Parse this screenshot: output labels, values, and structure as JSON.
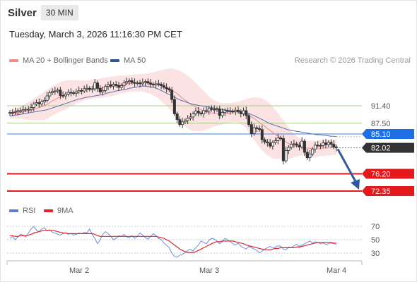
{
  "header": {
    "instrument": "Silver",
    "timeframe": "30 MIN",
    "datetime": "Tuesday, March 3, 2026 11:16:30 PM CET"
  },
  "legend": {
    "items": [
      {
        "label": "MA 20 + Bollinger Bands",
        "color": "#f08c8c"
      },
      {
        "label": "MA 50",
        "color": "#2f5597"
      }
    ],
    "credit": "Research © 2026 Trading Central"
  },
  "rsi_legend": {
    "items": [
      {
        "label": "RSI",
        "color": "#5b7fd6"
      },
      {
        "label": "9MA",
        "color": "#e0242b"
      }
    ]
  },
  "chart_data": [
    {
      "type": "candlestick",
      "x_labels": [
        "Mar 2",
        "Mar 3",
        "Mar 4"
      ],
      "ylim": [
        69.0,
        100.5
      ],
      "levels": [
        {
          "label": "91.40",
          "value": 91.4,
          "kind": "resistance"
        },
        {
          "label": "87.50",
          "value": 87.5,
          "kind": "resistance"
        },
        {
          "label": "85.10",
          "value": 85.1,
          "kind": "pivot"
        },
        {
          "label": "76.20",
          "value": 76.2,
          "kind": "support"
        },
        {
          "label": "72.35",
          "value": 72.35,
          "kind": "support"
        }
      ],
      "last_price": {
        "label": "82.02",
        "value": 82.02
      },
      "forecast": {
        "from": 82.02,
        "to": 72.35
      },
      "close": [
        89.9,
        89.9,
        90.1,
        90.3,
        90.3,
        90.5,
        90.6,
        90.6,
        91.0,
        91.8,
        92.1,
        91.8,
        92.3,
        92.6,
        93.6,
        94.3,
        94.6,
        94.7,
        94.9,
        93.7,
        93.6,
        94.0,
        94.4,
        94.3,
        94.2,
        94.5,
        94.8,
        94.7,
        95.2,
        95.3,
        95.1,
        95.2,
        96.5,
        95.3,
        94.5,
        94.8,
        95.7,
        96.1,
        95.8,
        96.2,
        95.9,
        95.5,
        95.9,
        96.5,
        96.8,
        97.0,
        96.6,
        96.4,
        96.5,
        96.3,
        96.6,
        96.8,
        96.5,
        96.2,
        96.1,
        96.3,
        96.2,
        95.9,
        95.5,
        95.2,
        94.9,
        92.8,
        89.6,
        88.3,
        87.2,
        87.8,
        88.1,
        88.6,
        88.9,
        89.6,
        90.2,
        89.8,
        89.6,
        90.3,
        90.2,
        90.8,
        90.6,
        90.5,
        90.7,
        89.2,
        89.9,
        90.3,
        90.2,
        90.2,
        90.1,
        90.4,
        90.1,
        89.6,
        90.3,
        89.2,
        87.2,
        85.2,
        86.5,
        86.3,
        86.1,
        83.8,
        83.3,
        83.1,
        82.4,
        83.2,
        83.6,
        84.2,
        84.1,
        79.1,
        81.4,
        82.1,
        82.8,
        82.9,
        82.6,
        82.2,
        83.5,
        81.0,
        79.8,
        80.6,
        81.7,
        82.6,
        82.5,
        82.5,
        83.1,
        82.7,
        83.2,
        82.8,
        82.2,
        82.02
      ],
      "ma20": [
        89.6,
        89.6,
        89.7,
        89.8,
        89.9,
        90.0,
        90.1,
        90.2,
        90.4,
        90.6,
        90.8,
        91.0,
        91.2,
        91.4,
        91.7,
        92.1,
        92.5,
        92.8,
        93.1,
        93.4,
        93.6,
        93.8,
        94.0,
        94.2,
        94.3,
        94.5,
        94.6,
        94.7,
        94.8,
        94.9,
        95.0,
        95.1,
        95.2,
        95.3,
        95.3,
        95.4,
        95.5,
        95.6,
        95.7,
        95.8,
        95.9,
        96.0,
        96.1,
        96.2,
        96.3,
        96.4,
        96.4,
        96.5,
        96.5,
        96.5,
        96.5,
        96.5,
        96.4,
        96.4,
        96.3,
        96.2,
        96.1,
        95.9,
        95.7,
        95.5,
        95.2,
        94.9,
        94.5,
        94.1,
        93.6,
        93.1,
        92.6,
        92.2,
        91.8,
        91.4,
        91.1,
        90.8,
        90.5,
        90.3,
        90.1,
        89.9,
        89.8,
        89.7,
        89.6,
        89.6,
        89.6,
        89.7,
        89.7,
        89.8,
        89.9,
        90.0,
        90.0,
        89.9,
        89.8,
        89.6,
        89.3,
        88.9,
        88.5,
        88.1,
        87.7,
        87.2,
        86.8,
        86.3,
        85.9,
        85.4,
        85.0,
        84.6,
        84.2,
        83.7,
        83.3,
        83.0,
        82.7,
        82.5,
        82.3,
        82.2,
        82.1,
        82.0,
        81.9,
        81.9,
        81.8,
        81.8,
        81.8,
        81.9,
        81.9,
        82.0,
        82.0,
        82.1,
        82.1,
        82.1
      ],
      "bb_upper": [
        90.6,
        90.7,
        90.9,
        91.1,
        91.3,
        91.6,
        91.9,
        92.2,
        92.6,
        93.0,
        93.4,
        93.8,
        94.2,
        94.6,
        95.0,
        95.4,
        95.8,
        96.1,
        96.4,
        96.7,
        96.9,
        97.0,
        97.1,
        97.1,
        97.1,
        97.1,
        97.1,
        97.0,
        97.0,
        97.0,
        97.1,
        97.2,
        97.3,
        97.4,
        97.5,
        97.6,
        97.7,
        97.8,
        97.9,
        98.0,
        98.0,
        98.1,
        98.1,
        98.2,
        98.2,
        98.3,
        98.3,
        98.4,
        98.4,
        98.5,
        98.5,
        98.6,
        98.6,
        98.7,
        98.9,
        99.0,
        99.2,
        99.4,
        99.5,
        99.6,
        99.7,
        99.7,
        99.6,
        99.4,
        99.2,
        98.9,
        98.5,
        98.1,
        97.6,
        97.1,
        96.5,
        95.9,
        95.3,
        94.7,
        94.1,
        93.5,
        93.0,
        92.6,
        92.3,
        92.1,
        92.0,
        92.0,
        92.0,
        92.0,
        92.1,
        92.2,
        92.3,
        92.5,
        92.7,
        92.9,
        93.1,
        93.2,
        93.3,
        93.3,
        93.2,
        93.0,
        92.7,
        92.3,
        91.8,
        91.2,
        90.5,
        89.7,
        88.9,
        88.1,
        87.3,
        86.5,
        85.8,
        85.1,
        84.6,
        84.2,
        83.9,
        83.7,
        83.6,
        83.6,
        83.6,
        83.6,
        83.7,
        83.7,
        83.8,
        83.8,
        83.8,
        83.8,
        83.8,
        83.8
      ],
      "bb_lower": [
        88.6,
        88.5,
        88.5,
        88.5,
        88.5,
        88.4,
        88.3,
        88.2,
        88.2,
        88.2,
        88.2,
        88.2,
        88.2,
        88.2,
        88.4,
        88.8,
        89.2,
        89.5,
        89.8,
        90.1,
        90.3,
        90.6,
        90.9,
        91.3,
        91.5,
        91.9,
        92.1,
        92.4,
        92.6,
        92.8,
        92.9,
        93.0,
        93.1,
        93.2,
        93.1,
        93.2,
        93.3,
        93.4,
        93.5,
        93.6,
        93.8,
        93.9,
        94.1,
        94.2,
        94.4,
        94.5,
        94.5,
        94.6,
        94.6,
        94.5,
        94.5,
        94.4,
        94.2,
        94.1,
        93.7,
        93.4,
        93.0,
        92.4,
        91.9,
        91.4,
        90.7,
        90.1,
        89.4,
        88.8,
        88.0,
        87.3,
        86.7,
        86.3,
        86.0,
        85.7,
        85.7,
        85.7,
        85.7,
        85.9,
        86.1,
        86.3,
        86.6,
        86.8,
        86.9,
        87.1,
        87.2,
        87.4,
        87.4,
        87.6,
        87.7,
        87.8,
        87.7,
        87.3,
        86.9,
        86.3,
        85.5,
        84.6,
        83.7,
        82.9,
        82.2,
        81.4,
        80.9,
        80.3,
        80.0,
        79.6,
        79.5,
        79.5,
        79.5,
        79.3,
        79.3,
        79.5,
        79.6,
        79.9,
        80.0,
        80.2,
        80.3,
        80.3,
        80.2,
        80.2,
        80.0,
        80.0,
        80.0,
        80.2,
        80.1,
        80.3,
        80.2,
        80.4,
        80.4,
        80.4
      ],
      "ma50": [
        89.1,
        89.2,
        89.3,
        89.4,
        89.5,
        89.6,
        89.7,
        89.8,
        89.9,
        90.0,
        90.1,
        90.2,
        90.3,
        90.4,
        90.5,
        90.7,
        90.9,
        91.1,
        91.3,
        91.5,
        91.7,
        91.9,
        92.1,
        92.3,
        92.5,
        92.7,
        92.9,
        93.0,
        93.2,
        93.3,
        93.4,
        93.5,
        93.6,
        93.7,
        93.8,
        93.9,
        94.1,
        94.3,
        94.4,
        94.5,
        94.7,
        94.8,
        94.9,
        95.0,
        95.1,
        95.3,
        95.4,
        95.5,
        95.6,
        95.7,
        95.8,
        95.8,
        95.7,
        95.6,
        95.5,
        95.3,
        95.1,
        94.8,
        94.5,
        94.2,
        93.9,
        93.6,
        93.3,
        93.0,
        92.7,
        92.5,
        92.3,
        92.1,
        91.9,
        91.7,
        91.6,
        91.5,
        91.4,
        91.3,
        91.2,
        91.1,
        91.0,
        90.9,
        90.8,
        90.7,
        90.6,
        90.5,
        90.4,
        90.3,
        90.2,
        90.2,
        90.2,
        90.1,
        90.0,
        89.9,
        89.7,
        89.4,
        89.2,
        88.9,
        88.6,
        88.3,
        88.0,
        87.7,
        87.4,
        87.2,
        87.0,
        86.8,
        86.6,
        86.4,
        86.2,
        86.0,
        85.9,
        85.8,
        85.7,
        85.6,
        85.5,
        85.4,
        85.3,
        85.2,
        85.1,
        85.0,
        84.9,
        84.9,
        84.8,
        84.8,
        84.7,
        84.6,
        84.6,
        84.5
      ]
    },
    {
      "type": "line",
      "name": "RSI",
      "yticks": [
        70,
        50,
        30
      ],
      "ylim": [
        20,
        80
      ],
      "rsi": [
        52,
        55,
        50,
        54,
        58,
        57,
        54,
        60,
        66,
        70,
        64,
        62,
        66,
        68,
        63,
        65,
        61,
        60,
        58,
        57,
        59,
        60,
        58,
        59,
        57,
        58,
        60,
        59,
        61,
        60,
        66,
        58,
        52,
        44,
        50,
        58,
        62,
        59,
        55,
        50,
        52,
        56,
        55,
        58,
        54,
        53,
        56,
        52,
        55,
        60,
        57,
        53,
        51,
        55,
        59,
        56,
        52,
        50,
        45,
        42,
        38,
        30,
        25,
        24,
        27,
        28,
        31,
        34,
        36,
        33,
        38,
        42,
        48,
        46,
        44,
        49,
        52,
        51,
        48,
        44,
        47,
        52,
        50,
        47,
        44,
        42,
        45,
        40,
        38,
        36,
        40,
        38,
        36,
        34,
        30,
        33,
        36,
        38,
        40,
        38,
        39,
        41,
        40,
        36,
        35,
        39,
        38,
        41,
        43,
        40,
        42,
        44,
        46,
        48,
        45,
        47,
        46,
        44,
        45,
        43,
        44,
        45,
        44,
        43
      ],
      "ma9": [
        56,
        56,
        55,
        55,
        56,
        56,
        56,
        57,
        58,
        60,
        61,
        62,
        63,
        64,
        64,
        64,
        64,
        63,
        62,
        61,
        60,
        60,
        59,
        59,
        59,
        59,
        59,
        59,
        59,
        59,
        59,
        59,
        58,
        56,
        55,
        55,
        55,
        55,
        55,
        55,
        55,
        55,
        55,
        55,
        55,
        55,
        55,
        55,
        55,
        55,
        55,
        55,
        55,
        55,
        55,
        55,
        54,
        53,
        52,
        50,
        48,
        45,
        42,
        39,
        36,
        34,
        32,
        31,
        31,
        31,
        32,
        34,
        36,
        38,
        40,
        42,
        44,
        46,
        47,
        47,
        48,
        48,
        48,
        48,
        48,
        47,
        46,
        45,
        44,
        42,
        41,
        40,
        39,
        38,
        37,
        36,
        35,
        35,
        35,
        36,
        37,
        37,
        38,
        38,
        38,
        38,
        38,
        38,
        39,
        39,
        40,
        41,
        42,
        43,
        44,
        45,
        46,
        46,
        46,
        46,
        46,
        46,
        45,
        45
      ],
      "x_labels": [
        "Mar 2",
        "Mar 3",
        "Mar 4"
      ]
    }
  ]
}
